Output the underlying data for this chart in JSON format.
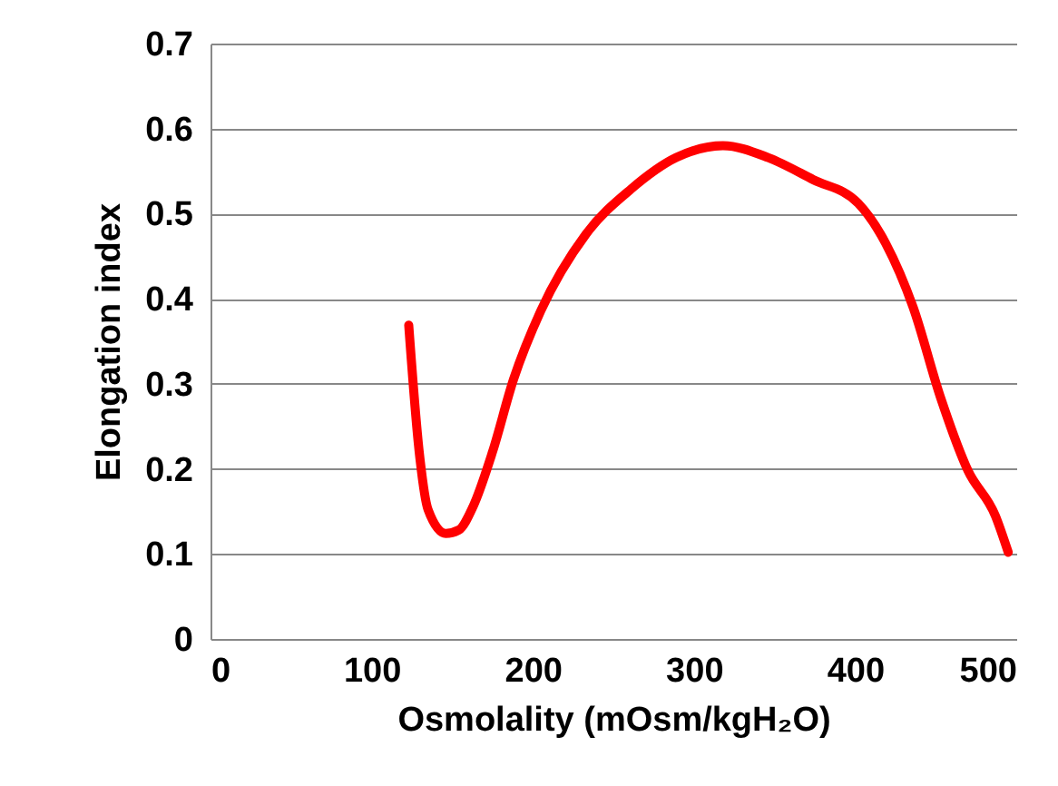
{
  "chart_data": {
    "type": "line",
    "xlabel": "Osmolality (mOsm/kgH₂O)",
    "ylabel": "Elongation index",
    "x": [
      123,
      129.5,
      135,
      146,
      154,
      163,
      175,
      188,
      205,
      233,
      261,
      289,
      318,
      346,
      374,
      402,
      419,
      436,
      453,
      470,
      487,
      495
    ],
    "series": [
      {
        "color": "#ff0000",
        "values": [
          0.369,
          0.22,
          0.152,
          0.124,
          0.128,
          0.156,
          0.22,
          0.305,
          0.386,
          0.476,
          0.529,
          0.566,
          0.58,
          0.566,
          0.54,
          0.512,
          0.465,
          0.39,
          0.284,
          0.198,
          0.145,
          0.102
        ]
      }
    ],
    "xlim": [
      0,
      500
    ],
    "xticks": [
      0,
      100,
      200,
      300,
      400,
      500
    ],
    "ylim": [
      0,
      0.7
    ],
    "yticks": [
      0,
      0.1,
      0.2,
      0.3,
      0.4,
      0.5,
      0.6,
      0.7
    ],
    "grid": "y",
    "legend": false,
    "marker": "none",
    "line_style": "solid"
  }
}
